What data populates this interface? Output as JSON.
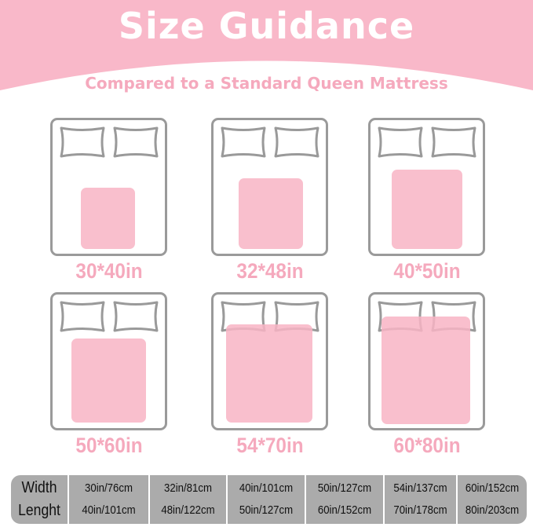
{
  "header": {
    "title": "Size Guidance",
    "subtitle": "Compared to a Standard Queen Mattress"
  },
  "colors": {
    "pink": "#f9b8c9",
    "pad": "#f8b4c4",
    "bed_outline": "#9a9a9a",
    "table": "#ababab"
  },
  "sizes": [
    {
      "label": "30*40in",
      "width_in": 30,
      "length_in": 40
    },
    {
      "label": "32*48in",
      "width_in": 32,
      "length_in": 48
    },
    {
      "label": "40*50in",
      "width_in": 40,
      "length_in": 50
    },
    {
      "label": "50*60in",
      "width_in": 50,
      "length_in": 60
    },
    {
      "label": "54*70in",
      "width_in": 54,
      "length_in": 70
    },
    {
      "label": "60*80in",
      "width_in": 60,
      "length_in": 80
    }
  ],
  "table": {
    "row_labels": [
      "Width",
      "Lenght"
    ],
    "columns": [
      [
        "30in/76cm",
        "40in/101cm"
      ],
      [
        "32in/81cm",
        "48in/122cm"
      ],
      [
        "40in/101cm",
        "50in/127cm"
      ],
      [
        "50in/127cm",
        "60in/152cm"
      ],
      [
        "54in/137cm",
        "70in/178cm"
      ],
      [
        "60in/152cm",
        "80in/203cm"
      ]
    ]
  }
}
